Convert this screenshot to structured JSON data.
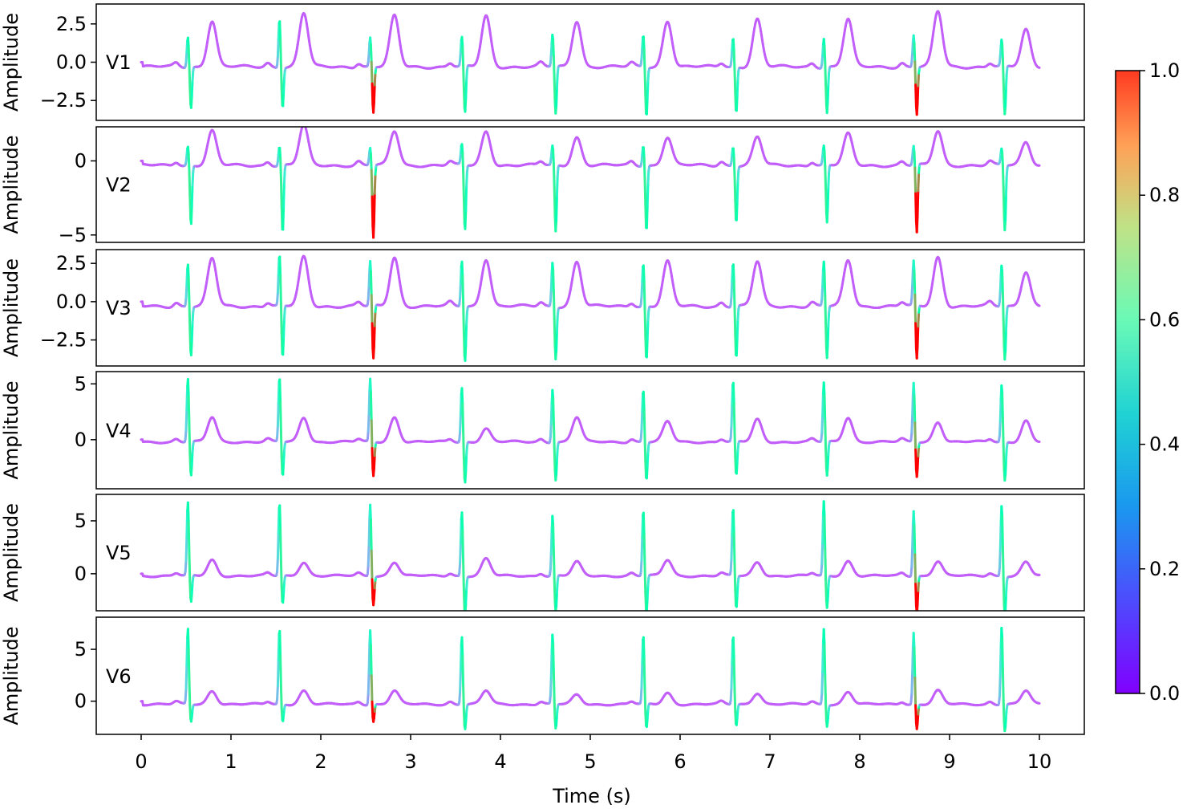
{
  "chart_data": {
    "type": "line",
    "xlabel": "Time (s)",
    "xlim": [
      0,
      10
    ],
    "xticks": [
      0,
      1,
      2,
      3,
      4,
      5,
      6,
      7,
      8,
      9,
      10
    ],
    "xtick_labels": [
      "0",
      "1",
      "2",
      "3",
      "4",
      "5",
      "6",
      "7",
      "8",
      "9",
      "10"
    ],
    "ylabel": "Amplitude",
    "colormap": "rainbow",
    "colorbar": {
      "range": [
        0.0,
        1.0
      ],
      "ticks": [
        0.0,
        0.2,
        0.4,
        0.6,
        0.8,
        1.0
      ],
      "tick_labels": [
        "0.0",
        "0.2",
        "0.4",
        "0.6",
        "0.8",
        "1.0"
      ]
    },
    "beat_times": [
      0.52,
      1.54,
      2.55,
      3.57,
      4.58,
      5.59,
      6.59,
      7.6,
      8.6,
      9.58
    ],
    "leads": [
      {
        "name": "V1",
        "ylim": [
          -3.8,
          3.8
        ],
        "yticks": [
          2.5,
          0.0,
          -2.5
        ],
        "ytick_labels": [
          "2.5",
          "0.0",
          "−2.5"
        ],
        "baseline": -0.3,
        "r_peak": [
          1.7,
          2.9,
          1.6,
          1.6,
          1.8,
          1.8,
          1.6,
          1.6,
          1.8,
          1.4
        ],
        "s_trough": [
          -3.0,
          -2.9,
          -3.3,
          -3.4,
          -3.4,
          -3.5,
          -3.3,
          -3.3,
          -3.4,
          -3.5
        ],
        "t_peak": [
          2.7,
          3.2,
          3.0,
          3.0,
          2.7,
          2.7,
          2.8,
          2.8,
          3.3,
          2.1
        ]
      },
      {
        "name": "V2",
        "ylim": [
          -5.5,
          2.3
        ],
        "yticks": [
          0,
          -5
        ],
        "ytick_labels": [
          "0",
          "−5"
        ],
        "baseline": -0.3,
        "r_peak": [
          1.0,
          1.0,
          0.9,
          1.1,
          1.0,
          1.1,
          1.0,
          1.0,
          1.0,
          0.8
        ],
        "s_trough": [
          -4.3,
          -4.9,
          -5.2,
          -4.7,
          -4.8,
          -4.7,
          -4.1,
          -4.2,
          -4.9,
          -4.7
        ],
        "t_peak": [
          2.0,
          2.4,
          2.0,
          2.0,
          1.6,
          1.6,
          1.6,
          1.8,
          2.0,
          1.3
        ]
      },
      {
        "name": "V3",
        "ylim": [
          -4.2,
          3.4
        ],
        "yticks": [
          2.5,
          0.0,
          -2.5
        ],
        "ytick_labels": [
          "2.5",
          "0.0",
          "−2.5"
        ],
        "baseline": -0.3,
        "r_peak": [
          2.5,
          3.0,
          2.6,
          2.7,
          2.6,
          2.5,
          2.6,
          2.6,
          2.6,
          2.4
        ],
        "s_trough": [
          -3.5,
          -3.7,
          -3.8,
          -3.9,
          -3.7,
          -3.8,
          -3.7,
          -3.7,
          -3.8,
          -3.8
        ],
        "t_peak": [
          2.8,
          2.9,
          2.9,
          2.8,
          2.6,
          2.6,
          2.6,
          2.7,
          2.9,
          2.0
        ]
      },
      {
        "name": "V4",
        "ylim": [
          -4.4,
          6.1
        ],
        "yticks": [
          5,
          0
        ],
        "ytick_labels": [
          "5",
          "0"
        ],
        "baseline": -0.2,
        "r_peak": [
          5.5,
          5.6,
          5.4,
          4.7,
          4.6,
          4.5,
          5.2,
          5.1,
          5.1,
          4.9
        ],
        "s_trough": [
          -3.3,
          -3.3,
          -3.3,
          -3.9,
          -3.6,
          -3.6,
          -3.3,
          -3.3,
          -3.3,
          -3.7
        ],
        "t_peak": [
          2.0,
          2.0,
          2.0,
          1.0,
          2.0,
          1.6,
          1.8,
          2.0,
          1.6,
          1.7
        ]
      },
      {
        "name": "V5",
        "ylim": [
          -3.5,
          7.5
        ],
        "yticks": [
          5,
          0
        ],
        "ytick_labels": [
          "5",
          "0"
        ],
        "baseline": -0.2,
        "r_peak": [
          6.7,
          6.7,
          6.6,
          5.9,
          5.5,
          6.0,
          6.2,
          6.8,
          6.0,
          6.5
        ],
        "s_trough": [
          -2.8,
          -2.9,
          -2.9,
          -3.9,
          -3.7,
          -3.7,
          -3.3,
          -3.3,
          -3.7,
          -4.0
        ],
        "t_peak": [
          1.3,
          1.1,
          1.1,
          1.4,
          1.1,
          1.3,
          1.1,
          1.2,
          1.2,
          1.1
        ]
      },
      {
        "name": "V6",
        "ylim": [
          -3.2,
          8.1
        ],
        "yticks": [
          5,
          0
        ],
        "ytick_labels": [
          "5",
          "0"
        ],
        "baseline": -0.3,
        "r_peak": [
          7.0,
          7.0,
          6.9,
          6.3,
          6.4,
          6.3,
          6.4,
          7.0,
          6.6,
          7.2
        ],
        "s_trough": [
          -2.0,
          -2.0,
          -2.0,
          -2.7,
          -2.7,
          -2.7,
          -2.4,
          -2.4,
          -2.7,
          -2.9
        ],
        "t_peak": [
          1.0,
          1.0,
          1.0,
          1.0,
          0.6,
          0.8,
          0.8,
          0.9,
          1.0,
          1.0
        ]
      }
    ]
  }
}
